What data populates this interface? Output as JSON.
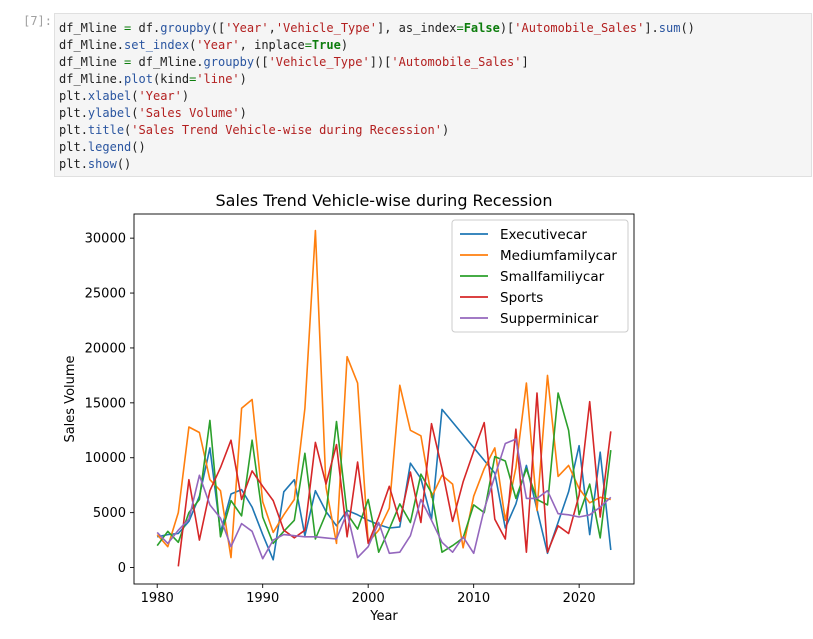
{
  "cell": {
    "prompt": "[7]:",
    "code_lines": [
      [
        [
          "var",
          "df_Mline "
        ],
        [
          "op",
          "="
        ],
        [
          "var",
          " df"
        ],
        [
          "punc",
          "."
        ],
        [
          "fn",
          "groupby"
        ],
        [
          "punc",
          "(["
        ],
        [
          "str",
          "'Year'"
        ],
        [
          "punc",
          ","
        ],
        [
          "str",
          "'Vehicle_Type'"
        ],
        [
          "punc",
          "], "
        ],
        [
          "var",
          "as_index"
        ],
        [
          "op",
          "="
        ],
        [
          "kw",
          "False"
        ],
        [
          "punc",
          ")["
        ],
        [
          "str",
          "'Automobile_Sales'"
        ],
        [
          "punc",
          "]."
        ],
        [
          "fn",
          "sum"
        ],
        [
          "punc",
          "()"
        ]
      ],
      [
        [
          "var",
          "df_Mline"
        ],
        [
          "punc",
          "."
        ],
        [
          "fn",
          "set_index"
        ],
        [
          "punc",
          "("
        ],
        [
          "str",
          "'Year'"
        ],
        [
          "punc",
          ", "
        ],
        [
          "var",
          "inplace"
        ],
        [
          "op",
          "="
        ],
        [
          "kw",
          "True"
        ],
        [
          "punc",
          ")"
        ]
      ],
      [
        [
          "var",
          "df_Mline "
        ],
        [
          "op",
          "="
        ],
        [
          "var",
          " df_Mline"
        ],
        [
          "punc",
          "."
        ],
        [
          "fn",
          "groupby"
        ],
        [
          "punc",
          "(["
        ],
        [
          "str",
          "'Vehicle_Type'"
        ],
        [
          "punc",
          "])["
        ],
        [
          "str",
          "'Automobile_Sales'"
        ],
        [
          "punc",
          "]"
        ]
      ],
      [
        [
          "var",
          "df_Mline"
        ],
        [
          "punc",
          "."
        ],
        [
          "fn",
          "plot"
        ],
        [
          "punc",
          "("
        ],
        [
          "var",
          "kind"
        ],
        [
          "op",
          "="
        ],
        [
          "str",
          "'line'"
        ],
        [
          "punc",
          ")"
        ]
      ],
      [
        [
          "var",
          "plt"
        ],
        [
          "punc",
          "."
        ],
        [
          "fn",
          "xlabel"
        ],
        [
          "punc",
          "("
        ],
        [
          "str",
          "'Year'"
        ],
        [
          "punc",
          ")"
        ]
      ],
      [
        [
          "var",
          "plt"
        ],
        [
          "punc",
          "."
        ],
        [
          "fn",
          "ylabel"
        ],
        [
          "punc",
          "("
        ],
        [
          "str",
          "'Sales Volume'"
        ],
        [
          "punc",
          ")"
        ]
      ],
      [
        [
          "var",
          "plt"
        ],
        [
          "punc",
          "."
        ],
        [
          "fn",
          "title"
        ],
        [
          "punc",
          "("
        ],
        [
          "str",
          "'Sales Trend Vehicle-wise during Recession'"
        ],
        [
          "punc",
          ")"
        ]
      ],
      [
        [
          "var",
          "plt"
        ],
        [
          "punc",
          "."
        ],
        [
          "fn",
          "legend"
        ],
        [
          "punc",
          "()"
        ]
      ],
      [
        [
          "var",
          "plt"
        ],
        [
          "punc",
          "."
        ],
        [
          "fn",
          "show"
        ],
        [
          "punc",
          "()"
        ]
      ]
    ]
  },
  "colors": {
    "Executivecar": "#1f77b4",
    "Mediumfamilycar": "#ff7f0e",
    "Smallfamiliycar": "#2ca02c",
    "Sports": "#d62728",
    "Supperminicar": "#9467bd"
  },
  "chart_data": {
    "type": "line",
    "title": "Sales Trend Vehicle-wise during Recession",
    "xlabel": "Year",
    "ylabel": "Sales Volume",
    "xlim": [
      1977.8,
      2025.2
    ],
    "ylim": [
      -1500,
      32200
    ],
    "xticks": [
      1980,
      1990,
      2000,
      2010,
      2020
    ],
    "yticks": [
      0,
      5000,
      10000,
      15000,
      20000,
      25000,
      30000
    ],
    "legend_position": "top-right",
    "grid": false,
    "series": [
      {
        "name": "Executivecar",
        "points": [
          [
            1980,
            2800
          ],
          [
            1981,
            3000
          ],
          [
            1982,
            3100
          ],
          [
            1983,
            4200
          ],
          [
            1984,
            6500
          ],
          [
            1985,
            10900
          ],
          [
            1986,
            3200
          ],
          [
            1987,
            6700
          ],
          [
            1988,
            7100
          ],
          [
            1989,
            5500
          ],
          [
            1990,
            3000
          ],
          [
            1991,
            700
          ],
          [
            1992,
            6900
          ],
          [
            1993,
            8000
          ],
          [
            1994,
            2900
          ],
          [
            1995,
            7000
          ],
          [
            1996,
            5100
          ],
          [
            1997,
            3800
          ],
          [
            1998,
            5200
          ],
          [
            1999,
            4800
          ],
          [
            2000,
            4300
          ],
          [
            2001,
            3900
          ],
          [
            2002,
            3600
          ],
          [
            2003,
            3700
          ],
          [
            2004,
            9500
          ],
          [
            2005,
            8100
          ],
          [
            2006,
            4400
          ],
          [
            2007,
            14400
          ],
          [
            2012,
            8600
          ],
          [
            2013,
            3600
          ],
          [
            2014,
            5800
          ],
          [
            2015,
            9300
          ],
          [
            2016,
            5300
          ],
          [
            2017,
            1300
          ],
          [
            2019,
            6900
          ],
          [
            2020,
            11100
          ],
          [
            2021,
            3000
          ],
          [
            2022,
            10500
          ],
          [
            2023,
            1600
          ]
        ]
      },
      {
        "name": "Mediumfamilycar",
        "points": [
          [
            1980,
            3000
          ],
          [
            1981,
            1900
          ],
          [
            1982,
            5000
          ],
          [
            1983,
            12800
          ],
          [
            1984,
            12300
          ],
          [
            1985,
            8000
          ],
          [
            1986,
            7000
          ],
          [
            1987,
            900
          ],
          [
            1988,
            14500
          ],
          [
            1989,
            15300
          ],
          [
            1990,
            6000
          ],
          [
            1991,
            3200
          ],
          [
            1992,
            4800
          ],
          [
            1993,
            6200
          ],
          [
            1994,
            14500
          ],
          [
            1995,
            30700
          ],
          [
            1996,
            7300
          ],
          [
            1997,
            2200
          ],
          [
            1998,
            19200
          ],
          [
            1999,
            16800
          ],
          [
            2000,
            2300
          ],
          [
            2001,
            3400
          ],
          [
            2002,
            5400
          ],
          [
            2003,
            16600
          ],
          [
            2004,
            12500
          ],
          [
            2005,
            12000
          ],
          [
            2006,
            6400
          ],
          [
            2007,
            8400
          ],
          [
            2008,
            7600
          ],
          [
            2009,
            1800
          ],
          [
            2010,
            6500
          ],
          [
            2011,
            9000
          ],
          [
            2012,
            10900
          ],
          [
            2013,
            4300
          ],
          [
            2014,
            9100
          ],
          [
            2015,
            16800
          ],
          [
            2016,
            5200
          ],
          [
            2017,
            17500
          ],
          [
            2018,
            8300
          ],
          [
            2019,
            9300
          ],
          [
            2020,
            7200
          ],
          [
            2021,
            5900
          ],
          [
            2022,
            6400
          ],
          [
            2023,
            6200
          ]
        ]
      },
      {
        "name": "Smallfamiliycar",
        "points": [
          [
            1980,
            2000
          ],
          [
            1981,
            3300
          ],
          [
            1982,
            2300
          ],
          [
            1983,
            5000
          ],
          [
            1984,
            6200
          ],
          [
            1985,
            13400
          ],
          [
            1986,
            2800
          ],
          [
            1987,
            6100
          ],
          [
            1988,
            4700
          ],
          [
            1989,
            11600
          ],
          [
            1990,
            4600
          ],
          [
            1991,
            2200
          ],
          [
            1992,
            3300
          ],
          [
            1993,
            4300
          ],
          [
            1994,
            10400
          ],
          [
            1995,
            2600
          ],
          [
            1996,
            4900
          ],
          [
            1997,
            13300
          ],
          [
            1998,
            4900
          ],
          [
            1999,
            3500
          ],
          [
            2000,
            6200
          ],
          [
            2001,
            1400
          ],
          [
            2002,
            3500
          ],
          [
            2003,
            5800
          ],
          [
            2004,
            4100
          ],
          [
            2005,
            8500
          ],
          [
            2006,
            6800
          ],
          [
            2007,
            1400
          ],
          [
            2008,
            2000
          ],
          [
            2009,
            2700
          ],
          [
            2010,
            5700
          ],
          [
            2011,
            5000
          ],
          [
            2012,
            10100
          ],
          [
            2013,
            9700
          ],
          [
            2014,
            6300
          ],
          [
            2015,
            9000
          ],
          [
            2016,
            6200
          ],
          [
            2017,
            5700
          ],
          [
            2018,
            15900
          ],
          [
            2019,
            12500
          ],
          [
            2020,
            4800
          ],
          [
            2021,
            7600
          ],
          [
            2022,
            2700
          ],
          [
            2023,
            10700
          ]
        ]
      },
      {
        "name": "Sports",
        "points": [
          [
            1982,
            100
          ],
          [
            1983,
            8000
          ],
          [
            1984,
            2500
          ],
          [
            1985,
            7000
          ],
          [
            1986,
            9100
          ],
          [
            1987,
            11600
          ],
          [
            1988,
            6200
          ],
          [
            1989,
            8800
          ],
          [
            1990,
            7400
          ],
          [
            1991,
            6100
          ],
          [
            1992,
            3400
          ],
          [
            1993,
            2700
          ],
          [
            1994,
            3400
          ],
          [
            1995,
            11400
          ],
          [
            1996,
            7600
          ],
          [
            1997,
            11200
          ],
          [
            1998,
            2800
          ],
          [
            1999,
            9600
          ],
          [
            2000,
            2200
          ],
          [
            2001,
            4600
          ],
          [
            2002,
            7400
          ],
          [
            2003,
            4200
          ],
          [
            2004,
            8700
          ],
          [
            2005,
            4100
          ],
          [
            2006,
            13100
          ],
          [
            2007,
            9000
          ],
          [
            2008,
            4200
          ],
          [
            2009,
            7800
          ],
          [
            2010,
            10600
          ],
          [
            2011,
            13200
          ],
          [
            2012,
            4400
          ],
          [
            2013,
            2600
          ],
          [
            2014,
            12600
          ],
          [
            2015,
            1400
          ],
          [
            2016,
            15900
          ],
          [
            2017,
            1400
          ],
          [
            2018,
            3800
          ],
          [
            2019,
            3100
          ],
          [
            2020,
            6600
          ],
          [
            2021,
            15100
          ],
          [
            2022,
            4600
          ],
          [
            2023,
            12400
          ]
        ]
      },
      {
        "name": "Supperminicar",
        "points": [
          [
            1980,
            3200
          ],
          [
            1981,
            2200
          ],
          [
            1982,
            3400
          ],
          [
            1983,
            4400
          ],
          [
            1984,
            8400
          ],
          [
            1985,
            5700
          ],
          [
            1986,
            4500
          ],
          [
            1987,
            1900
          ],
          [
            1988,
            4000
          ],
          [
            1989,
            3300
          ],
          [
            1990,
            800
          ],
          [
            1991,
            2500
          ],
          [
            1992,
            3000
          ],
          [
            1993,
            2900
          ],
          [
            1994,
            2800
          ],
          [
            1995,
            2800
          ],
          [
            1996,
            2700
          ],
          [
            1997,
            2600
          ],
          [
            1998,
            5000
          ],
          [
            1999,
            900
          ],
          [
            2000,
            1900
          ],
          [
            2001,
            4100
          ],
          [
            2002,
            1300
          ],
          [
            2003,
            1400
          ],
          [
            2004,
            2900
          ],
          [
            2005,
            6200
          ],
          [
            2006,
            4300
          ],
          [
            2007,
            2300
          ],
          [
            2008,
            1400
          ],
          [
            2009,
            2800
          ],
          [
            2010,
            1300
          ],
          [
            2011,
            5300
          ],
          [
            2012,
            8300
          ],
          [
            2013,
            11300
          ],
          [
            2014,
            11700
          ],
          [
            2015,
            6300
          ],
          [
            2016,
            6300
          ],
          [
            2017,
            7000
          ],
          [
            2018,
            4900
          ],
          [
            2019,
            4800
          ],
          [
            2020,
            4600
          ],
          [
            2021,
            4800
          ],
          [
            2022,
            5500
          ],
          [
            2023,
            6400
          ]
        ]
      }
    ]
  }
}
